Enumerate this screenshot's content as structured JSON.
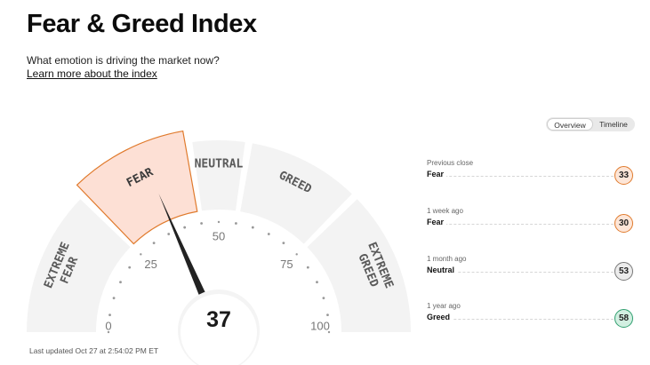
{
  "header": {
    "title": "Fear & Greed Index",
    "subtitle": "What emotion is driving the market now?",
    "learn_link": "Learn more about the index"
  },
  "view_toggle": {
    "options": [
      "Overview",
      "Timeline"
    ],
    "selected": "Overview"
  },
  "gauge": {
    "value": 37,
    "value_label": "37",
    "min": 0,
    "max": 100,
    "active_zone": "FEAR",
    "zones": [
      {
        "label": "EXTREME FEAR",
        "from": 0,
        "to": 25
      },
      {
        "label": "FEAR",
        "from": 25,
        "to": 45
      },
      {
        "label": "NEUTRAL",
        "from": 45,
        "to": 55
      },
      {
        "label": "GREED",
        "from": 55,
        "to": 75
      },
      {
        "label": "EXTREME GREED",
        "from": 75,
        "to": 100
      }
    ],
    "scale_labels": [
      "0",
      "25",
      "50",
      "75",
      "100"
    ],
    "colors": {
      "zone_fill": "#f3f3f3",
      "active_fill": "#fde0d5",
      "active_border": "#e07a2c",
      "zone_text": "#5a5a5a",
      "active_text": "#3a3a3a",
      "needle": "#222222",
      "scale": "#999999"
    }
  },
  "last_updated": "Last updated Oct 27 at 2:54:02 PM ET",
  "history": [
    {
      "when": "Previous close",
      "label": "Fear",
      "value": "33",
      "bg": "#fde6d8",
      "border": "#e07a2c"
    },
    {
      "when": "1 week ago",
      "label": "Fear",
      "value": "30",
      "bg": "#fde6d8",
      "border": "#e07a2c"
    },
    {
      "when": "1 month ago",
      "label": "Neutral",
      "value": "53",
      "bg": "#ececec",
      "border": "#777777"
    },
    {
      "when": "1 year ago",
      "label": "Greed",
      "value": "58",
      "bg": "#d2efe1",
      "border": "#2e9e6e"
    }
  ]
}
